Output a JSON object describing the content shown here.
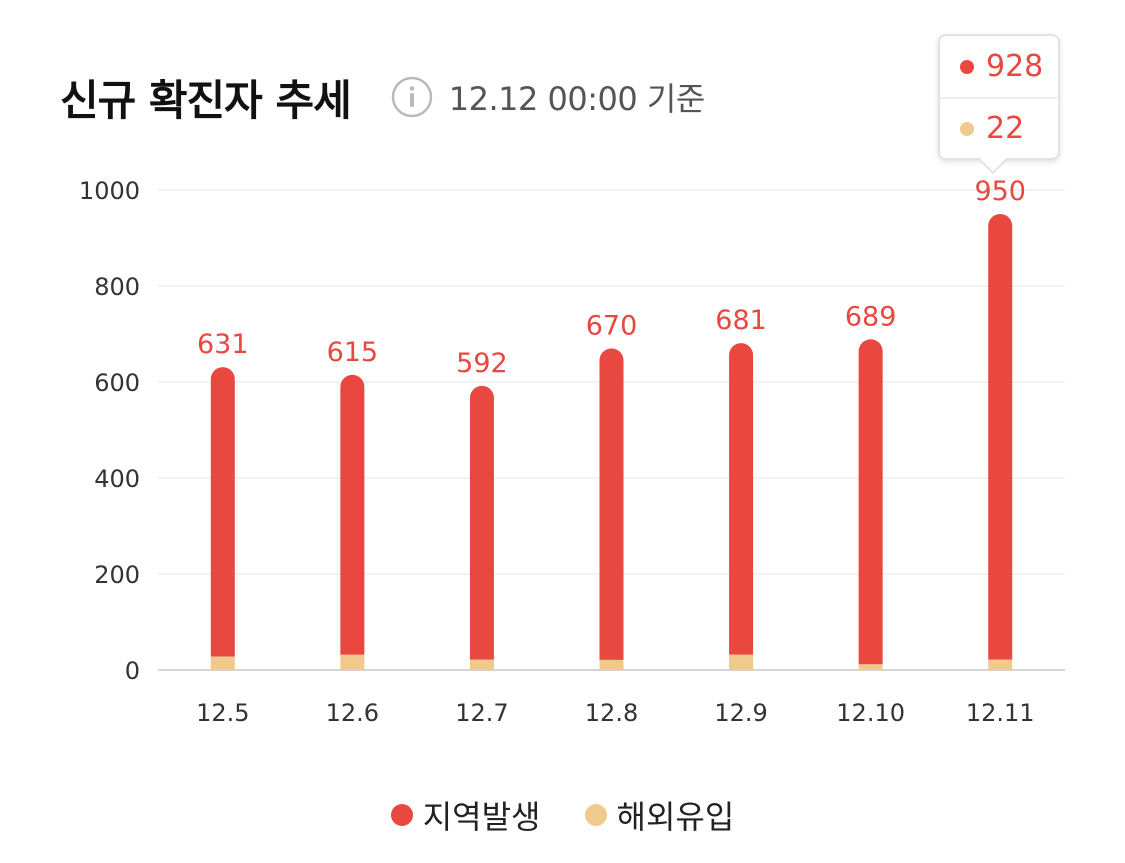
{
  "header": {
    "title": "신규 확진자 추세",
    "info_icon": "info-circle-icon",
    "base_time": "12.12 00:00 기준"
  },
  "colors": {
    "local": "#e8483f",
    "overseas": "#f0c98f",
    "grid": "#eeeeee",
    "axis_text": "#333333",
    "label_text": "#e8483f"
  },
  "tooltip": {
    "local_value": "928",
    "overseas_value": "22"
  },
  "chart_data": {
    "type": "bar",
    "stacked": true,
    "categories": [
      "12.5",
      "12.6",
      "12.7",
      "12.8",
      "12.9",
      "12.10",
      "12.11"
    ],
    "series": [
      {
        "name": "지역발생",
        "values": [
          603,
          583,
          570,
          649,
          649,
          677,
          928
        ]
      },
      {
        "name": "해외유입",
        "values": [
          28,
          32,
          22,
          21,
          32,
          12,
          22
        ]
      }
    ],
    "totals": [
      631,
      615,
      592,
      670,
      681,
      689,
      950
    ],
    "ylim": [
      0,
      1000
    ],
    "yticks": [
      "0",
      "200",
      "400",
      "600",
      "800",
      "1000"
    ],
    "grid": true,
    "legend_position": "bottom"
  }
}
